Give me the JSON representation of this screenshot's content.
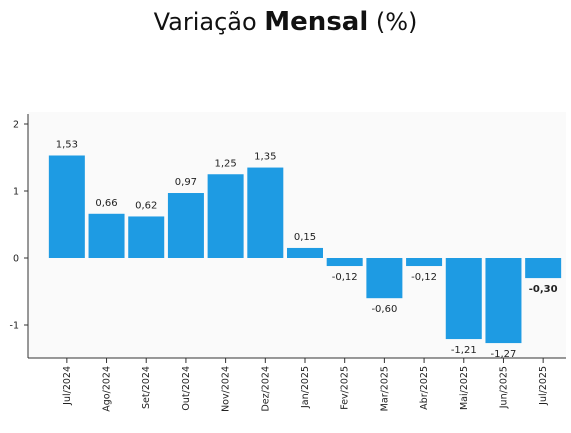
{
  "title": {
    "part1": "Variação",
    "part2": "Mensal",
    "part3": "(%)"
  },
  "colors": {
    "bar": "#1e9be3",
    "axis": "#333333",
    "plot_bg": "#fafafa"
  },
  "chart_data": {
    "type": "bar",
    "title": "Variação Mensal (%)",
    "categories": [
      "Jul/2024",
      "Ago/2024",
      "Set/2024",
      "Out/2024",
      "Nov/2024",
      "Dez/2024",
      "Jan/2025",
      "Fev/2025",
      "Mar/2025",
      "Abr/2025",
      "Mai/2025",
      "Jun/2025",
      "Jul/2025"
    ],
    "values": [
      1.53,
      0.66,
      0.62,
      0.97,
      1.25,
      1.35,
      0.15,
      -0.12,
      -0.6,
      -0.12,
      -1.21,
      -1.27,
      -0.3
    ],
    "value_labels": [
      "1,53",
      "0,66",
      "0,62",
      "0,97",
      "1,25",
      "1,35",
      "0,15",
      "-0,12",
      "-0,60",
      "-0,12",
      "-1,21",
      "-1,27",
      "-0,30"
    ],
    "y_ticks": [
      2,
      1,
      0,
      -1
    ],
    "y_tick_labels": [
      "2",
      "1",
      "0",
      "-1"
    ],
    "ylim": [
      -1.5,
      2
    ],
    "xlabel": "",
    "ylabel": "",
    "grid": false,
    "legend": "none"
  }
}
